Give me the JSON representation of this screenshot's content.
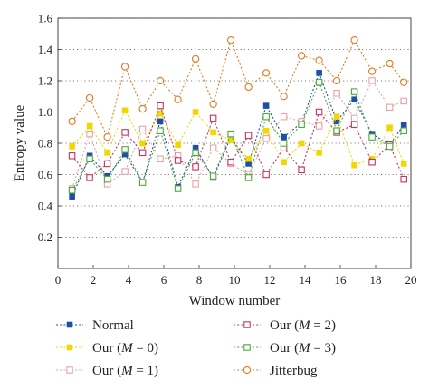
{
  "chart_data": {
    "type": "line",
    "xlabel": "Window number",
    "ylabel": "Entropy value",
    "xlim": [
      0,
      20
    ],
    "ylim": [
      0,
      1.6
    ],
    "xticks": [
      "0",
      "2",
      "4",
      "6",
      "8",
      "10",
      "12",
      "14",
      "16",
      "18",
      "20"
    ],
    "yticks": [
      "0.2",
      "0.4",
      "0.6",
      "0.8",
      "1.0",
      "1.2",
      "1.4",
      "1.6"
    ],
    "grid": "horizontal dotted",
    "legend_position": "bottom",
    "x": [
      0.8,
      1.8,
      2.8,
      3.8,
      4.8,
      5.8,
      6.8,
      7.8,
      8.8,
      9.8,
      10.8,
      11.8,
      12.8,
      13.8,
      14.8,
      15.8,
      16.8,
      17.8,
      18.8,
      19.6
    ],
    "series": [
      {
        "name": "Normal",
        "name_rich": [
          "Normal"
        ],
        "color": "#1f4ea8",
        "marker": "filled-square",
        "values": [
          0.46,
          0.72,
          0.59,
          0.73,
          0.55,
          0.94,
          0.52,
          0.77,
          0.58,
          0.84,
          0.67,
          1.04,
          0.84,
          0.93,
          1.25,
          0.94,
          1.08,
          0.86,
          0.79,
          0.92
        ]
      },
      {
        "name": "Our (M = 0)",
        "name_rich": [
          "Our (",
          "M",
          " = 0)"
        ],
        "color": "#f2d600",
        "marker": "filled-square",
        "values": [
          0.78,
          0.91,
          0.74,
          1.01,
          0.8,
          0.99,
          0.79,
          1.0,
          0.87,
          0.82,
          0.7,
          0.88,
          0.68,
          0.8,
          0.74,
          0.97,
          0.66,
          0.7,
          0.9,
          0.67
        ]
      },
      {
        "name": "Our (M = 1)",
        "name_rich": [
          "Our (",
          "M",
          " = 1)"
        ],
        "color": "#e8a3a3",
        "marker": "open-square",
        "values": [
          0.51,
          0.86,
          0.54,
          0.62,
          0.89,
          0.7,
          0.72,
          0.54,
          0.77,
          0.67,
          0.6,
          0.83,
          0.97,
          0.94,
          0.91,
          1.12,
          0.96,
          1.2,
          1.03,
          1.07
        ]
      },
      {
        "name": "Our (M = 2)",
        "name_rich": [
          "Our (",
          "M",
          " = 2)"
        ],
        "color": "#c8345a",
        "marker": "open-square",
        "values": [
          0.72,
          0.58,
          0.67,
          0.87,
          0.74,
          1.04,
          0.69,
          0.65,
          0.96,
          0.68,
          0.85,
          0.6,
          0.77,
          0.63,
          1.0,
          0.87,
          0.92,
          0.68,
          0.79,
          0.57
        ]
      },
      {
        "name": "Our (M = 3)",
        "name_rich": [
          "Our (",
          "M",
          " = 3)"
        ],
        "color": "#4fa83a",
        "marker": "open-square",
        "values": [
          0.5,
          0.7,
          0.57,
          0.76,
          0.55,
          0.88,
          0.51,
          0.74,
          0.59,
          0.86,
          0.58,
          0.97,
          0.8,
          0.92,
          1.19,
          0.88,
          1.13,
          0.84,
          0.78,
          0.88
        ]
      },
      {
        "name": "Jitterbug",
        "name_rich": [
          "Jitterbug"
        ],
        "color": "#e07a1f",
        "marker": "open-circle",
        "values": [
          0.94,
          1.09,
          0.84,
          1.29,
          1.02,
          1.2,
          1.08,
          1.34,
          1.05,
          1.46,
          1.16,
          1.25,
          1.1,
          1.36,
          1.33,
          1.2,
          1.46,
          1.26,
          1.31,
          1.19
        ]
      }
    ]
  }
}
